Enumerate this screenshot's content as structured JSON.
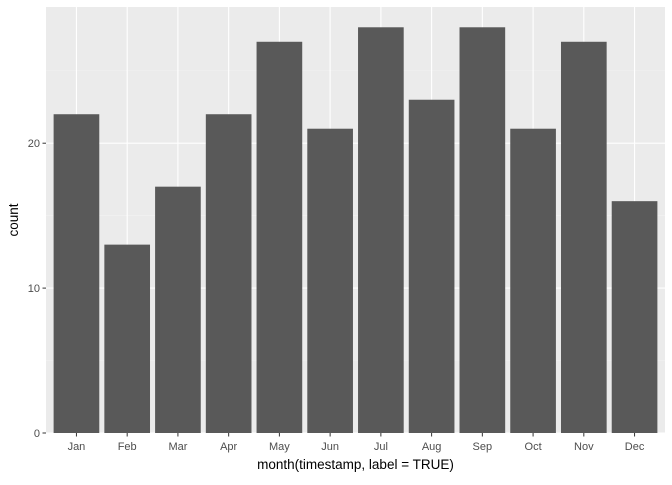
{
  "chart_data": {
    "type": "bar",
    "title": "",
    "xlabel": "month(timestamp, label = TRUE)",
    "ylabel": "count",
    "categories": [
      "Jan",
      "Feb",
      "Mar",
      "Apr",
      "May",
      "Jun",
      "Jul",
      "Aug",
      "Sep",
      "Oct",
      "Nov",
      "Dec"
    ],
    "values": [
      22,
      13,
      17,
      22,
      27,
      21,
      28,
      23,
      28,
      21,
      27,
      16
    ],
    "ylim": [
      0,
      29.4
    ],
    "yticks": [
      0,
      10,
      20
    ],
    "grid": true,
    "legend": "none",
    "colors": {
      "bar": "#595959",
      "panel": "#ebebeb",
      "grid_major": "#ffffff",
      "grid_minor": "#f2f2f2"
    }
  }
}
